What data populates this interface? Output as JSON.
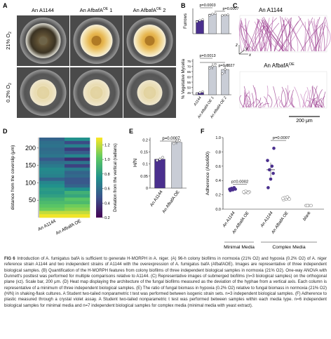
{
  "panel_letters": [
    "A",
    "B",
    "C",
    "D",
    "E",
    "F"
  ],
  "panel_a": {
    "column_labels": [
      "An A1144",
      "An AfbafA",
      "An AfbafA"
    ],
    "column_super": [
      "",
      "OE",
      "OE"
    ],
    "column_suffix": [
      "",
      " 1",
      " 2"
    ],
    "row_labels": [
      "21% O",
      "0.2% O"
    ],
    "row_subscript": "2"
  },
  "panel_c": {
    "top_label": "An A1144",
    "bottom_label": "An AfbafA",
    "bottom_label_super": "OE",
    "scale_bar": "200 μm",
    "axis_labels": [
      "x",
      "y",
      "z"
    ]
  },
  "panel_e_pvalue": "p=0.0007",
  "caption": {
    "lead": "FIG 6",
    "body": "Introduction of A. fumigatus bafA is sufficient to generate H-MORPH in A. niger. (A) 96-h colony biofilms in normoxia (21% O2) and hypoxia (0.2% O2) of A. niger reference strain A1144 and two independent strains of A1144 with the overexpression of A. fumigatus bafA (AfbafAOE). Images are representative of three independent biological samples. (B) Quantification of the H-MORPH features from colony biofilms of three independent biological samples in normoxia (21% O2). One-way ANOVA with Dunnett's posttest was performed for multiple comparisons relative to A1144. (C) Representative images of submerged biofilms (n=3 biological samples) on the orthogonal plane (xz). Scale bar, 200 μm. (D) Heat map displaying the architecture of the fungal biofilms measured as the deviation of the hyphae from a vertical axis. Each column is representative of a minimum of three independent biological samples. (E) The ratio of fungal biomass in hypoxia (0.2% O2) relative to fungal biomass in normoxia (21% O2) (H/N) in shaking-flask cultures. A Student two-tailed nonparametric t test was performed between isogenic strain sets. n=3 independent biological samples. (F) Adherence to plastic measured through a crystal violet assay. A Student two-tailed nonparametric t test was performed between samples within each media type. n=6 independent biological samples for minimal media and n=7 independent biological samples for complex media (minimal media with yeast extract)."
  },
  "chart_data": [
    {
      "panel": "B-top",
      "type": "bar",
      "categories": [
        "A1144",
        "An AfbafA OE 1",
        "An AfbafA OE 2"
      ],
      "values": [
        4.2,
        6.2,
        5.9
      ],
      "errors": [
        0.3,
        0.3,
        0.1
      ],
      "points": [
        [
          3.8,
          4.2,
          4.5
        ],
        [
          5.8,
          6.2,
          6.4
        ],
        [
          5.8,
          5.9,
          6.0
        ]
      ],
      "ylabel": "Furrows",
      "ylim": [
        0,
        8
      ],
      "pvalues": [
        "p=0.0003",
        "p=0.0007"
      ],
      "colors": [
        "#4a2f8e",
        "#c9cdd6",
        "#c9cdd6"
      ]
    },
    {
      "panel": "B-bottom",
      "type": "bar",
      "categories": [
        "A1144",
        "An AfbafA OE 1",
        "An AfbafA OE 2"
      ],
      "values": [
        45,
        70,
        67
      ],
      "errors": [
        1,
        3,
        4
      ],
      "points": [
        [
          44,
          45,
          46
        ],
        [
          68,
          70,
          72
        ],
        [
          63,
          67,
          71
        ]
      ],
      "ylabel": "% Vegetative Mycelia",
      "yticks": [
        45,
        50,
        55,
        60,
        65,
        70,
        75
      ],
      "ylim": [
        43,
        77
      ],
      "pvalues": [
        "p=0.0013",
        "p=0.0027"
      ]
    },
    {
      "panel": "D",
      "type": "heatmap",
      "columns": [
        "An A1144",
        "An AfbafA OE"
      ],
      "ylabel": "distance from the coverslip (μm)",
      "yticks": [
        50,
        100,
        150,
        200
      ],
      "ylim": [
        0,
        230
      ],
      "colorbar_label": "Deviation from the vertical (radians)",
      "colorbar_ticks": [
        0.2,
        0.4,
        0.6,
        0.8,
        1.0,
        1.2
      ],
      "clim": [
        0.2,
        1.3
      ],
      "values": [
        [
          0.55,
          0.75
        ],
        [
          0.6,
          0.45
        ],
        [
          0.62,
          0.68
        ],
        [
          0.58,
          0.4
        ],
        [
          0.6,
          0.52
        ],
        [
          0.63,
          0.7
        ],
        [
          0.5,
          0.35
        ],
        [
          0.6,
          0.62
        ],
        [
          0.65,
          0.42
        ],
        [
          0.72,
          0.66
        ],
        [
          0.7,
          0.55
        ],
        [
          0.68,
          0.58
        ],
        [
          0.55,
          0.5
        ],
        [
          0.7,
          0.5
        ],
        [
          0.75,
          0.56
        ],
        [
          0.8,
          0.75
        ],
        [
          0.78,
          0.9
        ],
        [
          0.82,
          0.85
        ],
        [
          0.9,
          1.0
        ],
        [
          0.95,
          0.95
        ],
        [
          1.0,
          1.05
        ],
        [
          1.05,
          1.1
        ],
        [
          1.2,
          1.2
        ],
        [
          1.28,
          1.28
        ]
      ]
    },
    {
      "panel": "E",
      "type": "bar",
      "categories": [
        "An A1144",
        "An AfbafA OE"
      ],
      "values": [
        0.12,
        0.19
      ],
      "errors": [
        0.008,
        0.008
      ],
      "points": [
        [
          0.115,
          0.12,
          0.128
        ],
        [
          0.185,
          0.195,
          0.198
        ]
      ],
      "ylabel": "H/N",
      "ylim": [
        0,
        0.21
      ],
      "yticks": [
        0,
        0.05,
        0.1,
        0.15,
        0.2
      ],
      "colors": [
        "#4a2f8e",
        "#c9cdd6"
      ]
    },
    {
      "panel": "F",
      "type": "scatter",
      "categories": [
        "An A1144",
        "An AfbafA OE",
        "An A1144",
        "An AfbafA OE",
        "blank"
      ],
      "groups": [
        "Minimal Media",
        "Complex Media"
      ],
      "values": [
        0.28,
        0.24,
        0.55,
        0.15,
        0.05
      ],
      "errors": [
        0.01,
        0.01,
        0.1,
        0.01,
        0.003
      ],
      "points": [
        [
          0.26,
          0.27,
          0.28,
          0.29,
          0.3,
          0.28
        ],
        [
          0.23,
          0.24,
          0.24,
          0.25,
          0.23,
          0.24
        ],
        [
          0.3,
          0.42,
          0.5,
          0.55,
          0.6,
          0.68,
          0.85
        ],
        [
          0.13,
          0.14,
          0.15,
          0.16,
          0.17,
          0.15,
          0.14
        ],
        [
          0.05,
          0.05,
          0.05,
          0.05
        ]
      ],
      "ylabel": "Adherence (Abs600)",
      "ylim": [
        0,
        1.0
      ],
      "yticks": [
        0.0,
        0.2,
        0.4,
        0.6,
        0.8,
        1.0
      ],
      "pvalues": [
        "p=0.0002",
        "p=0.0007"
      ],
      "colors": [
        "#4a2f8e",
        "#8a8a8a",
        "#4a2f8e",
        "#8a8a8a",
        "#8a8a8a"
      ]
    }
  ]
}
